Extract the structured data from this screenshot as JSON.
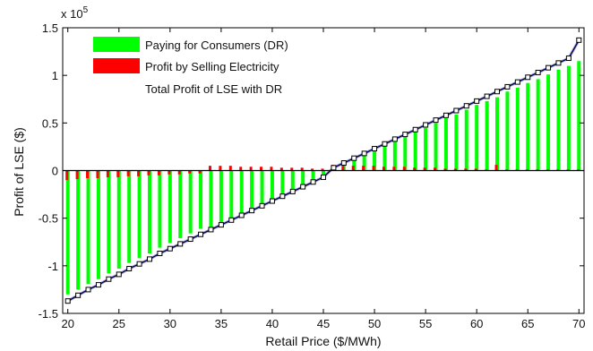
{
  "chart_data": {
    "type": "bar",
    "xlabel": "Retail Price ($/MWh)",
    "ylabel": "Profit of LSE ($)",
    "exponent_label": "x 10",
    "exponent_power": "5",
    "xlim": [
      19.5,
      70.5
    ],
    "ylim": [
      -1.5,
      1.5
    ],
    "scale_factor": 100000,
    "xticks": [
      20,
      25,
      30,
      35,
      40,
      45,
      50,
      55,
      60,
      65,
      70
    ],
    "yticks": [
      -1.5,
      -1,
      -0.5,
      0,
      0.5,
      1,
      1.5
    ],
    "ytick_labels": [
      "-1.5",
      "-1",
      "-0.5",
      "0",
      "0.5",
      "1",
      "1.5"
    ],
    "grid": false,
    "legend_position": "top-left",
    "legend": [
      {
        "name": "Paying for Consumers (DR)",
        "color": "#00ff00"
      },
      {
        "name": "Profit by Selling Electricity",
        "color": "#ff0000"
      },
      {
        "name": "Total Profit of LSE with DR",
        "color": ""
      }
    ],
    "x": [
      20,
      21,
      22,
      23,
      24,
      25,
      26,
      27,
      28,
      29,
      30,
      31,
      32,
      33,
      34,
      35,
      36,
      37,
      38,
      39,
      40,
      41,
      42,
      43,
      44,
      45,
      46,
      47,
      48,
      49,
      50,
      51,
      52,
      53,
      54,
      55,
      56,
      57,
      58,
      59,
      60,
      61,
      62,
      63,
      64,
      65,
      66,
      67,
      68,
      69,
      70
    ],
    "series": [
      {
        "name": "Paying for Consumers (DR)",
        "color": "#00ff00",
        "values": [
          -1.3,
          -1.25,
          -1.19,
          -1.14,
          -1.08,
          -1.03,
          -0.97,
          -0.92,
          -0.87,
          -0.81,
          -0.76,
          -0.71,
          -0.66,
          -0.61,
          -0.62,
          -0.57,
          -0.52,
          -0.47,
          -0.42,
          -0.37,
          -0.32,
          -0.27,
          -0.22,
          -0.17,
          -0.12,
          -0.06,
          0.04,
          0.09,
          0.13,
          0.18,
          0.22,
          0.27,
          0.31,
          0.36,
          0.41,
          0.45,
          0.5,
          0.55,
          0.59,
          0.64,
          0.69,
          0.73,
          0.77,
          0.83,
          0.87,
          0.92,
          0.96,
          1.01,
          1.06,
          1.1,
          1.15
        ]
      },
      {
        "name": "Profit by Selling Electricity",
        "color": "#ff0000",
        "values": [
          -0.1,
          -0.09,
          -0.08,
          -0.08,
          -0.07,
          -0.07,
          -0.06,
          -0.06,
          -0.05,
          -0.05,
          -0.04,
          -0.04,
          -0.03,
          -0.03,
          0.05,
          0.05,
          0.05,
          0.04,
          0.04,
          0.04,
          0.04,
          0.03,
          0.03,
          0.03,
          0.02,
          0.02,
          0.06,
          0.05,
          0.05,
          0.05,
          0.05,
          0.04,
          0.04,
          0.04,
          0.03,
          0.03,
          0.03,
          0.02,
          0.02,
          0.02,
          0.02,
          0.01,
          0.06,
          0.01,
          0.01,
          0.01,
          0.01,
          0.01,
          0.01,
          0.01,
          0.01
        ]
      },
      {
        "name": "Total Profit of LSE with DR",
        "color": "#000000",
        "values": [
          -1.37,
          -1.31,
          -1.25,
          -1.2,
          -1.14,
          -1.09,
          -1.03,
          -0.98,
          -0.93,
          -0.87,
          -0.82,
          -0.77,
          -0.72,
          -0.67,
          -0.62,
          -0.57,
          -0.52,
          -0.47,
          -0.42,
          -0.37,
          -0.32,
          -0.27,
          -0.22,
          -0.17,
          -0.12,
          -0.07,
          0.03,
          0.08,
          0.13,
          0.18,
          0.23,
          0.28,
          0.33,
          0.38,
          0.43,
          0.48,
          0.53,
          0.58,
          0.63,
          0.68,
          0.73,
          0.78,
          0.83,
          0.88,
          0.93,
          0.98,
          1.03,
          1.08,
          1.13,
          1.18,
          1.37
        ]
      }
    ]
  }
}
